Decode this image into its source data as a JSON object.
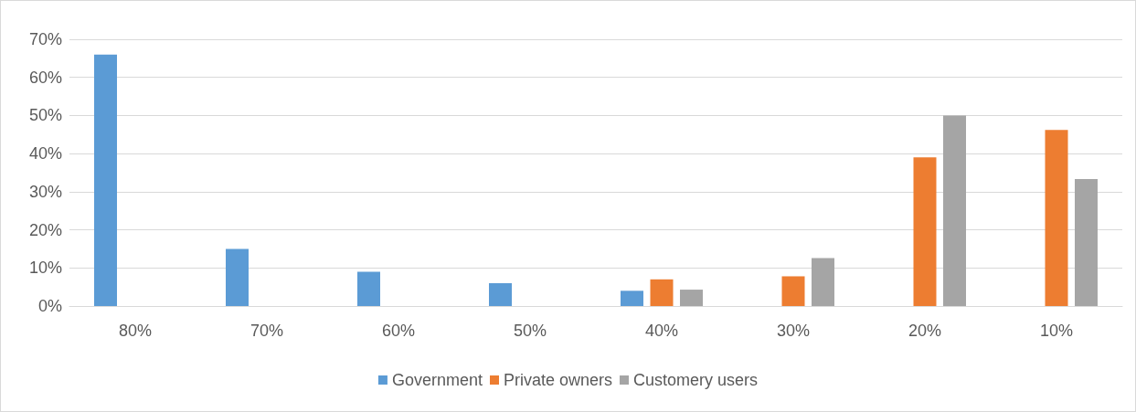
{
  "chart_data": {
    "type": "bar",
    "categories": [
      "80%",
      "70%",
      "60%",
      "50%",
      "40%",
      "30%",
      "20%",
      "10%"
    ],
    "series": [
      {
        "name": "Government",
        "color": "#5b9bd5",
        "values": [
          66,
          15,
          9,
          6,
          4,
          0,
          0,
          0
        ]
      },
      {
        "name": "Private owners",
        "color": "#ed7d31",
        "values": [
          0,
          0,
          0,
          0,
          7,
          7.8,
          39,
          46.2
        ]
      },
      {
        "name": "Customery users",
        "color": "#a5a5a5",
        "values": [
          0,
          0,
          0,
          0,
          4.3,
          12.6,
          50,
          33.3
        ]
      }
    ],
    "ylim": [
      0,
      70
    ],
    "yticks": [
      {
        "value": 0,
        "label": "0%"
      },
      {
        "value": 10,
        "label": "10%"
      },
      {
        "value": 20,
        "label": "20%"
      },
      {
        "value": 30,
        "label": "30%"
      },
      {
        "value": 40,
        "label": "40%"
      },
      {
        "value": 50,
        "label": "50%"
      },
      {
        "value": 60,
        "label": "60%"
      },
      {
        "value": 70,
        "label": "70%"
      }
    ],
    "grid": "y",
    "legend": "bottom"
  }
}
